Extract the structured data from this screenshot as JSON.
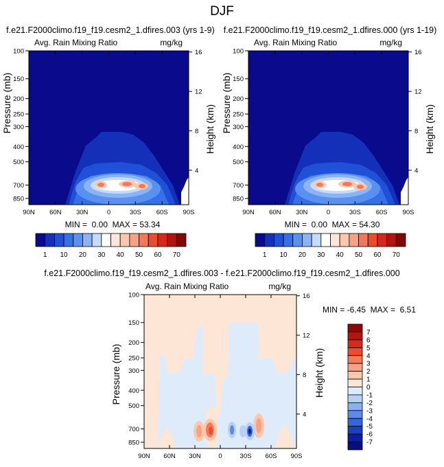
{
  "figure_title": "DJF",
  "chart_data": [
    {
      "type": "heatmap",
      "title": "f.e21.F2000climo.f19_f19.cesm2_1.dfires.003 (yrs 1-9)",
      "left_label": "Avg. Rain Mixing Ratio",
      "units": "mg/kg",
      "ylabel": "Pressure (mb)",
      "ylabel_right": "Height (km)",
      "x_ticks": [
        "90N",
        "60N",
        "30N",
        "0",
        "30S",
        "60S",
        "90S"
      ],
      "y_ticks": [
        "100",
        "150",
        "200",
        "250",
        "300",
        "400",
        "500",
        "700",
        "850"
      ],
      "height_ticks": [
        "16",
        "12",
        "8",
        "4"
      ],
      "stats_label": "MIN =  0.00  MAX = 53.34",
      "min": 0.0,
      "max": 53.34,
      "colorbar_labels": [
        "1",
        "10",
        "20",
        "30",
        "40",
        "50",
        "60",
        "70"
      ]
    },
    {
      "type": "heatmap",
      "title": "f.e21.F2000climo.f19_f19.cesm2_1.dfires.000 (yrs 1-19)",
      "left_label": "Avg. Rain Mixing Ratio",
      "units": "mg/kg",
      "ylabel": "Pressure (mb)",
      "ylabel_right": "Height (km)",
      "x_ticks": [
        "90N",
        "60N",
        "30N",
        "0",
        "30S",
        "60S",
        "90S"
      ],
      "y_ticks": [
        "100",
        "150",
        "200",
        "250",
        "300",
        "400",
        "500",
        "700",
        "850"
      ],
      "height_ticks": [
        "16",
        "12",
        "8",
        "4"
      ],
      "stats_label": "MIN =  0.00  MAX = 54.30",
      "min": 0.0,
      "max": 54.3,
      "colorbar_labels": [
        "1",
        "10",
        "20",
        "30",
        "40",
        "50",
        "60",
        "70"
      ]
    },
    {
      "type": "heatmap",
      "title": "f.e21.F2000climo.f19_f19.cesm2_1.dfires.003 - f.e21.F2000climo.f19_f19.cesm2_1.dfires.000",
      "left_label": "Avg. Rain Mixing Ratio",
      "units": "mg/kg",
      "ylabel": "Pressure (mb)",
      "ylabel_right": "Height (km)",
      "x_ticks": [
        "90N",
        "60N",
        "30N",
        "0",
        "30S",
        "60S",
        "90S"
      ],
      "y_ticks": [
        "100",
        "150",
        "200",
        "250",
        "300",
        "400",
        "500",
        "700",
        "850"
      ],
      "height_ticks": [
        "16",
        "12",
        "8",
        "4"
      ],
      "stats_label": "MIN = -6.45  MAX =  6.51",
      "min": -6.45,
      "max": 6.51,
      "colorbar_labels": [
        "7",
        "6",
        "5",
        "4",
        "3",
        "2",
        "1",
        "0",
        "-1",
        "-2",
        "-3",
        "-4",
        "-5",
        "-6",
        "-7"
      ]
    }
  ],
  "colors": {
    "seq": [
      "#0a0a8c",
      "#1530b8",
      "#2150d8",
      "#3670e8",
      "#5a90f0",
      "#8cb4f4",
      "#c4dcfa",
      "#ffffff",
      "#fde6d6",
      "#fbc8ae",
      "#f8a283",
      "#f57658",
      "#ee4a2e",
      "#d8271a",
      "#b01510",
      "#800808"
    ],
    "div": [
      "#8a0a0a",
      "#b51414",
      "#d82a1a",
      "#ee4a2e",
      "#f57a5a",
      "#f8a283",
      "#fbc8ae",
      "#fde6d6",
      "#ddebfb",
      "#b6d0f7",
      "#88b0f2",
      "#5a8ce8",
      "#3466d8",
      "#1a40c0",
      "#0c1e9e",
      "#06107a"
    ]
  }
}
